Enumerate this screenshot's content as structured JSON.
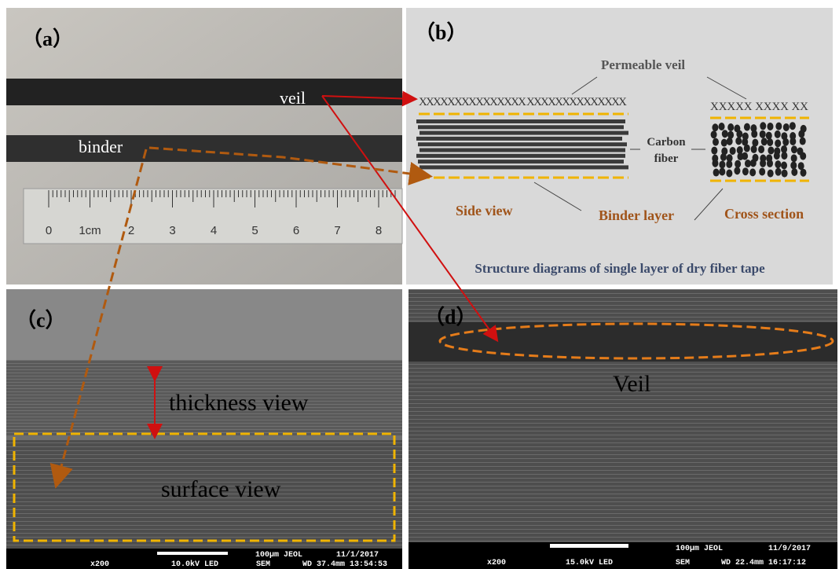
{
  "panel_a": {
    "label": "（a）",
    "veil": "veil",
    "binder": "binder",
    "ruler_ticks": [
      "0",
      "1cm",
      "2",
      "3",
      "4",
      "5",
      "6",
      "7",
      "8"
    ]
  },
  "panel_b": {
    "label": "（b）",
    "permeable_veil": "Permeable veil",
    "veil_marks_side": "XXXXXXXXXXXXXXX XXXXXXXXXXXXXX",
    "veil_marks_cross": "XXXXX XXXX XX",
    "carbon_fiber": [
      "Carbon",
      "fiber"
    ],
    "side_view": "Side view",
    "binder_layer": "Binder layer",
    "cross_section": "Cross section",
    "caption": "Structure diagrams of single layer of dry fiber tape"
  },
  "panel_c": {
    "label": "（c）",
    "thickness_view": "thickness view",
    "surface_view": "surface view",
    "sem_bar": {
      "magnification": "x200",
      "voltage": "10.0kV LED",
      "mode": "SEM",
      "scale": "100µm JEOL",
      "date": "11/1/2017",
      "details": "WD 37.4mm 13:54:53"
    }
  },
  "panel_d": {
    "label": "（d）",
    "veil": "Veil",
    "sem_bar": {
      "magnification": "x200",
      "voltage": "15.0kV LED",
      "mode": "SEM",
      "scale": "100µm JEOL",
      "date": "11/9/2017",
      "details": "WD 22.4mm 16:17:12"
    }
  }
}
